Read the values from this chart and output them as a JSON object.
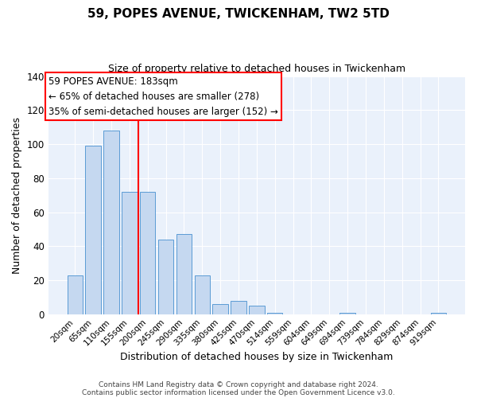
{
  "title": "59, POPES AVENUE, TWICKENHAM, TW2 5TD",
  "subtitle": "Size of property relative to detached houses in Twickenham",
  "xlabel": "Distribution of detached houses by size in Twickenham",
  "ylabel": "Number of detached properties",
  "bar_labels": [
    "20sqm",
    "65sqm",
    "110sqm",
    "155sqm",
    "200sqm",
    "245sqm",
    "290sqm",
    "335sqm",
    "380sqm",
    "425sqm",
    "470sqm",
    "514sqm",
    "559sqm",
    "604sqm",
    "649sqm",
    "694sqm",
    "739sqm",
    "784sqm",
    "829sqm",
    "874sqm",
    "919sqm"
  ],
  "bar_values": [
    23,
    99,
    108,
    72,
    72,
    44,
    47,
    23,
    6,
    8,
    5,
    1,
    0,
    0,
    0,
    1,
    0,
    0,
    0,
    0,
    1
  ],
  "bar_color": "#c5d8f0",
  "bar_edge_color": "#5b9bd5",
  "ylim": [
    0,
    140
  ],
  "yticks": [
    0,
    20,
    40,
    60,
    80,
    100,
    120,
    140
  ],
  "vline_x": 3.5,
  "vline_color": "red",
  "annotation_title": "59 POPES AVENUE: 183sqm",
  "annotation_line1": "← 65% of detached houses are smaller (278)",
  "annotation_line2": "35% of semi-detached houses are larger (152) →",
  "annotation_box_color": "red",
  "footer1": "Contains HM Land Registry data © Crown copyright and database right 2024.",
  "footer2": "Contains public sector information licensed under the Open Government Licence v3.0.",
  "background_color": "#eaf1fb",
  "grid_color": "#ffffff",
  "fig_bg": "#ffffff"
}
